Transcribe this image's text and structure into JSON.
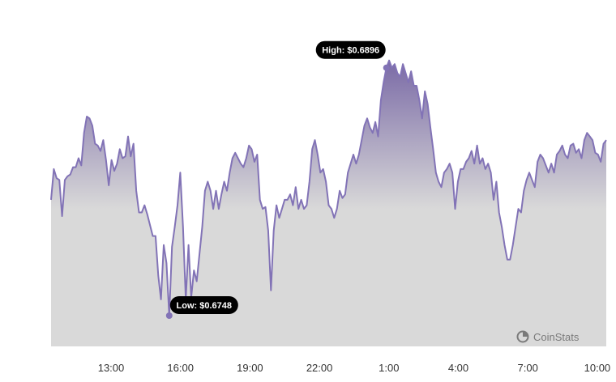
{
  "chart_data": {
    "type": "area",
    "x_ticks": [
      "13:00",
      "16:00",
      "19:00",
      "22:00",
      "1:00",
      "4:00",
      "7:00",
      "10:00"
    ],
    "ylim": [
      0.6734,
      0.6912
    ],
    "series": [
      {
        "values": [
          0.6815,
          0.6832,
          0.6827,
          0.6826,
          0.6806,
          0.6826,
          0.6828,
          0.6829,
          0.6833,
          0.6833,
          0.6838,
          0.6834,
          0.6852,
          0.6861,
          0.686,
          0.6856,
          0.6846,
          0.6845,
          0.6842,
          0.6848,
          0.6837,
          0.6823,
          0.6837,
          0.6831,
          0.6835,
          0.6843,
          0.6838,
          0.6839,
          0.685,
          0.6839,
          0.6846,
          0.682,
          0.6808,
          0.6808,
          0.6812,
          0.6807,
          0.6801,
          0.6795,
          0.6795,
          0.6773,
          0.676,
          0.679,
          0.678,
          0.6751,
          0.6789,
          0.68,
          0.6812,
          0.683,
          0.68,
          0.676,
          0.679,
          0.6761,
          0.6776,
          0.677,
          0.6785,
          0.68,
          0.682,
          0.6825,
          0.682,
          0.681,
          0.682,
          0.681,
          0.6818,
          0.6825,
          0.682,
          0.683,
          0.6838,
          0.6841,
          0.6838,
          0.6835,
          0.6833,
          0.6838,
          0.6845,
          0.6843,
          0.6836,
          0.684,
          0.6815,
          0.681,
          0.6811,
          0.6798,
          0.6765,
          0.6798,
          0.6812,
          0.6805,
          0.681,
          0.6815,
          0.6815,
          0.6818,
          0.6812,
          0.6822,
          0.681,
          0.6815,
          0.681,
          0.6812,
          0.6825,
          0.6843,
          0.6848,
          0.684,
          0.683,
          0.6832,
          0.6825,
          0.6812,
          0.681,
          0.6805,
          0.681,
          0.682,
          0.6816,
          0.6818,
          0.683,
          0.6835,
          0.684,
          0.6835,
          0.684,
          0.6848,
          0.6856,
          0.686,
          0.6855,
          0.6852,
          0.6858,
          0.685,
          0.687,
          0.688,
          0.6888,
          0.6892,
          0.6888,
          0.689,
          0.6885,
          0.6883,
          0.689,
          0.6885,
          0.688,
          0.6886,
          0.6878,
          0.6878,
          0.687,
          0.686,
          0.6875,
          0.6868,
          0.6855,
          0.6843,
          0.683,
          0.6825,
          0.6822,
          0.683,
          0.6832,
          0.6835,
          0.683,
          0.681,
          0.6825,
          0.6832,
          0.6832,
          0.6836,
          0.6838,
          0.6842,
          0.6835,
          0.6845,
          0.6835,
          0.6838,
          0.6832,
          0.6835,
          0.683,
          0.6815,
          0.6825,
          0.6808,
          0.68,
          0.679,
          0.6782,
          0.6782,
          0.679,
          0.68,
          0.681,
          0.6808,
          0.682,
          0.6826,
          0.683,
          0.6826,
          0.6822,
          0.6836,
          0.684,
          0.6838,
          0.6834,
          0.683,
          0.6835,
          0.683,
          0.684,
          0.6842,
          0.6845,
          0.684,
          0.6838,
          0.6845,
          0.6846,
          0.6841,
          0.6843,
          0.6838,
          0.6848,
          0.6852,
          0.685,
          0.6848,
          0.6841,
          0.684,
          0.6836,
          0.6846,
          0.6848
        ]
      }
    ],
    "annotations": [
      {
        "text": "High: $0.6896",
        "index": 122
      },
      {
        "text": "Low: $0.6748",
        "index": 43
      }
    ],
    "area_fill_top": "#7a6aa6",
    "area_fill_bottom": "#d9d9d9",
    "line_color": "#8273b6",
    "grid": false
  },
  "brand": {
    "name": "CoinStats",
    "icon": "coinstats-logo-icon"
  }
}
